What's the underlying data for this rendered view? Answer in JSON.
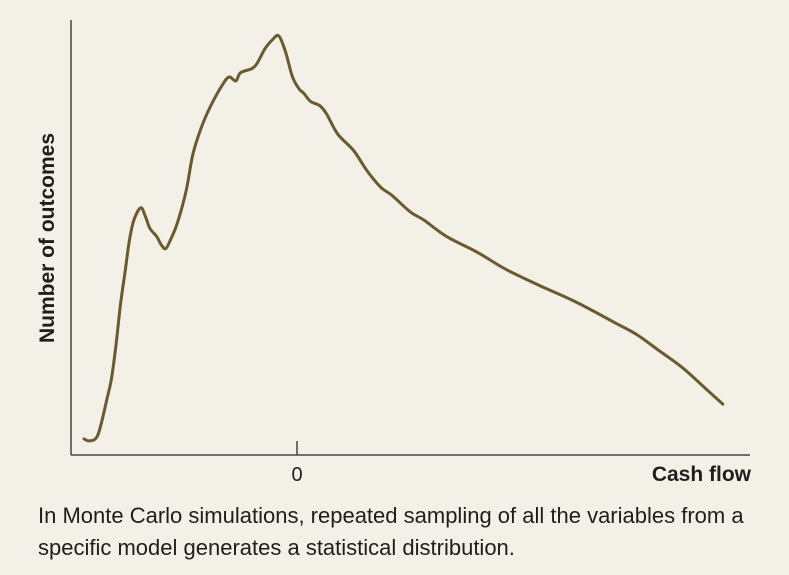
{
  "colors": {
    "background": "#f3f0e7",
    "line": "#6b5a2e",
    "axis": "#444444",
    "text": "#1e1e1e"
  },
  "caption": "In Monte Carlo simulations, repeated sampling of all the variables from a specific model generates a statistical distribution.",
  "chart_data": {
    "type": "line",
    "title": "",
    "xlabel": "Cash flow",
    "ylabel": "Number of outcomes",
    "x_ticks": [
      {
        "value": 0,
        "label": "0"
      }
    ],
    "xlim": [
      -100,
      200
    ],
    "ylim": [
      0,
      100
    ],
    "grid": false,
    "legend": "none",
    "series": [
      {
        "values": [
          {
            "x": -94,
            "y": 1.5
          },
          {
            "x": -92,
            "y": 1
          },
          {
            "x": -89,
            "y": 1.5
          },
          {
            "x": -87,
            "y": 4
          },
          {
            "x": -84,
            "y": 11
          },
          {
            "x": -82,
            "y": 16
          },
          {
            "x": -80,
            "y": 24
          },
          {
            "x": -78,
            "y": 34
          },
          {
            "x": -76,
            "y": 42
          },
          {
            "x": -74,
            "y": 50
          },
          {
            "x": -72,
            "y": 55
          },
          {
            "x": -69,
            "y": 58
          },
          {
            "x": -67,
            "y": 56
          },
          {
            "x": -65,
            "y": 53
          },
          {
            "x": -62,
            "y": 51
          },
          {
            "x": -60,
            "y": 49
          },
          {
            "x": -58,
            "y": 48
          },
          {
            "x": -56,
            "y": 50
          },
          {
            "x": -53,
            "y": 54
          },
          {
            "x": -49,
            "y": 62
          },
          {
            "x": -46,
            "y": 71
          },
          {
            "x": -42,
            "y": 78
          },
          {
            "x": -38,
            "y": 83
          },
          {
            "x": -33,
            "y": 88
          },
          {
            "x": -30,
            "y": 90
          },
          {
            "x": -27,
            "y": 89
          },
          {
            "x": -25,
            "y": 91
          },
          {
            "x": -20,
            "y": 92
          },
          {
            "x": -18,
            "y": 93
          },
          {
            "x": -16,
            "y": 95
          },
          {
            "x": -14,
            "y": 97
          },
          {
            "x": -11,
            "y": 99
          },
          {
            "x": -8,
            "y": 100
          },
          {
            "x": -5,
            "y": 96
          },
          {
            "x": -2,
            "y": 90
          },
          {
            "x": 1,
            "y": 87
          },
          {
            "x": 3,
            "y": 86
          },
          {
            "x": 6,
            "y": 84
          },
          {
            "x": 10,
            "y": 83
          },
          {
            "x": 13,
            "y": 81
          },
          {
            "x": 18,
            "y": 76
          },
          {
            "x": 25,
            "y": 72
          },
          {
            "x": 31,
            "y": 67
          },
          {
            "x": 37,
            "y": 63
          },
          {
            "x": 42,
            "y": 61
          },
          {
            "x": 50,
            "y": 57
          },
          {
            "x": 56,
            "y": 55
          },
          {
            "x": 66,
            "y": 51
          },
          {
            "x": 80,
            "y": 47
          },
          {
            "x": 92,
            "y": 43
          },
          {
            "x": 107,
            "y": 39
          },
          {
            "x": 123,
            "y": 35
          },
          {
            "x": 140,
            "y": 30
          },
          {
            "x": 150,
            "y": 27
          },
          {
            "x": 160,
            "y": 23
          },
          {
            "x": 170,
            "y": 19
          },
          {
            "x": 180,
            "y": 14
          },
          {
            "x": 188,
            "y": 10
          }
        ]
      }
    ]
  }
}
